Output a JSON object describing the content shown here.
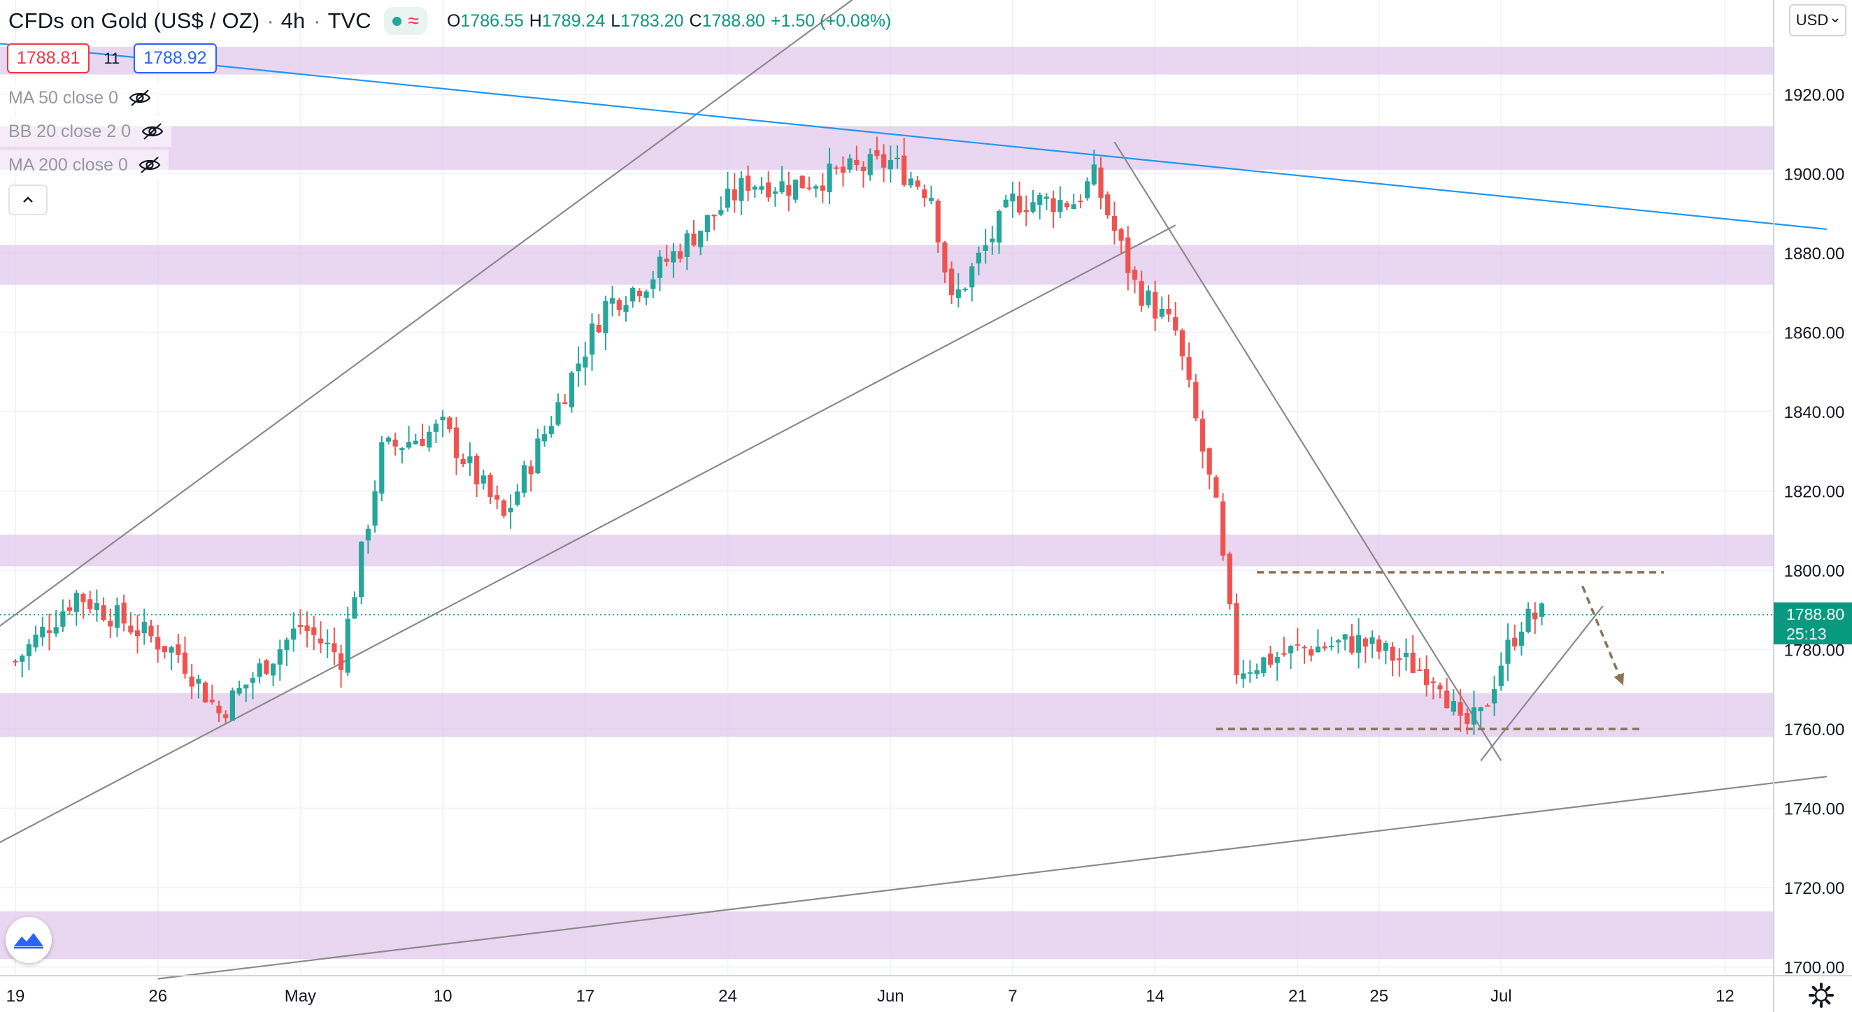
{
  "header": {
    "symbol": "CFDs on Gold (US$ / OZ)",
    "timeframe": "4h",
    "source": "TVC",
    "status_wave": "≈",
    "ohlc": {
      "o_label": "O",
      "o_value": "1786.55",
      "h_label": "H",
      "h_value": "1789.24",
      "l_label": "L",
      "l_value": "1783.20",
      "c_label": "C",
      "c_value": "1788.80",
      "change": "+1.50 (+0.08%)"
    }
  },
  "quote": {
    "bid": "1788.81",
    "spread": "11",
    "ask": "1788.92"
  },
  "indicators": [
    {
      "label": "MA 50 close 0",
      "icon": "eye-crossed-icon"
    },
    {
      "label": "BB 20 close 2 0",
      "icon": "eye-crossed-icon"
    },
    {
      "label": "MA 200 close 0",
      "icon": "eye-crossed-icon"
    }
  ],
  "collapse_glyph": "^",
  "currency_button": "USD",
  "last_price": {
    "value": "1788.80",
    "countdown": "25:13"
  },
  "colors": {
    "up": "#26a69a",
    "down": "#ef5350",
    "zone": "#e1c6ea",
    "trend_line": "#8a8a8a",
    "blue_line": "#2196f3",
    "projection": "#8b7355",
    "price_tag": "#089981"
  },
  "chart_data": {
    "type": "candlestick",
    "title": "CFDs on Gold (US$ / OZ) 4h",
    "ylim": [
      1700,
      1925
    ],
    "y_ticks": [
      1700,
      1720,
      1740,
      1760,
      1780,
      1800,
      1820,
      1840,
      1860,
      1880,
      1900,
      1920
    ],
    "y_tick_labels": [
      "1700.00",
      "1720.00",
      "1740.00",
      "1760.00",
      "1780.00",
      "1800.00",
      "1820.00",
      "1840.00",
      "1860.00",
      "1880.00",
      "1900.00",
      "1920.00"
    ],
    "x_tick_labels": [
      "19",
      "26",
      "May",
      "10",
      "17",
      "24",
      "Jun",
      "7",
      "14",
      "21",
      "25",
      "Jul",
      "12"
    ],
    "grid": true,
    "anchors": [
      {
        "date": "Apr 19",
        "close": 1777
      },
      {
        "date": "Apr 22",
        "close": 1794
      },
      {
        "date": "Apr 27",
        "close": 1779
      },
      {
        "date": "Apr 29",
        "close": 1764
      },
      {
        "date": "May 3",
        "close": 1786
      },
      {
        "date": "May 5",
        "close": 1778
      },
      {
        "date": "May 7",
        "close": 1830
      },
      {
        "date": "May 10",
        "close": 1836
      },
      {
        "date": "May 13",
        "close": 1813
      },
      {
        "date": "May 18",
        "close": 1867
      },
      {
        "date": "May 20",
        "close": 1873
      },
      {
        "date": "May 25",
        "close": 1898
      },
      {
        "date": "May 27",
        "close": 1897
      },
      {
        "date": "Jun 1",
        "close": 1903
      },
      {
        "date": "Jun 3",
        "close": 1895
      },
      {
        "date": "Jun 4",
        "close": 1867
      },
      {
        "date": "Jun 7",
        "close": 1893
      },
      {
        "date": "Jun 10",
        "close": 1893
      },
      {
        "date": "Jun 11",
        "close": 1899
      },
      {
        "date": "Jun 13",
        "close": 1872
      },
      {
        "date": "Jun 15",
        "close": 1860
      },
      {
        "date": "Jun 17",
        "close": 1815
      },
      {
        "date": "Jun 18",
        "close": 1775
      },
      {
        "date": "Jun 21",
        "close": 1780
      },
      {
        "date": "Jun 24",
        "close": 1782
      },
      {
        "date": "Jun 28",
        "close": 1773
      },
      {
        "date": "Jun 29",
        "close": 1760
      },
      {
        "date": "Jun 30",
        "close": 1763
      },
      {
        "date": "Jul 1",
        "close": 1777
      },
      {
        "date": "Jul 2",
        "close": 1787
      },
      {
        "date": "Jul 3",
        "close": 1788.8
      }
    ],
    "zones": [
      {
        "low": 1925,
        "high": 1932
      },
      {
        "low": 1901,
        "high": 1912
      },
      {
        "low": 1872,
        "high": 1882
      },
      {
        "low": 1801,
        "high": 1809
      },
      {
        "low": 1758,
        "high": 1769
      },
      {
        "low": 1702,
        "high": 1714
      }
    ],
    "lines": [
      {
        "kind": "channel-upper",
        "from": {
          "date": "Apr 14",
          "price": 1770
        },
        "to": {
          "date": "Jun 5",
          "price": 1966
        }
      },
      {
        "kind": "channel-lower",
        "from": {
          "date": "Apr 14",
          "price": 1720
        },
        "to": {
          "date": "Jun 15",
          "price": 1887
        }
      },
      {
        "kind": "descending-blue",
        "from": {
          "date": "Apr 14",
          "price": 1935
        },
        "to": {
          "date": "Jul 17",
          "price": 1886
        }
      },
      {
        "kind": "downtrend",
        "from": {
          "date": "Jun 12",
          "price": 1908
        },
        "to": {
          "date": "Jul 1",
          "price": 1752
        }
      },
      {
        "kind": "uptrend",
        "from": {
          "date": "Jun 30",
          "price": 1752
        },
        "to": {
          "date": "Jul 6",
          "price": 1791
        }
      },
      {
        "kind": "support-long",
        "from": {
          "date": "Apr 26",
          "price": 1697
        },
        "to": {
          "date": "Jul 17",
          "price": 1748
        }
      },
      {
        "kind": "resistance-dashed",
        "from": {
          "date": "Jun 19",
          "price": 1799.5
        },
        "to": {
          "date": "Jul 9",
          "price": 1799.5
        }
      },
      {
        "kind": "support-dashed",
        "from": {
          "date": "Jun 17",
          "price": 1760
        },
        "to": {
          "date": "Jul 8",
          "price": 1760
        }
      },
      {
        "kind": "projection-arrow",
        "from": {
          "date": "Jul 5",
          "price": 1796
        },
        "to": {
          "date": "Jul 7",
          "price": 1771
        }
      }
    ]
  }
}
